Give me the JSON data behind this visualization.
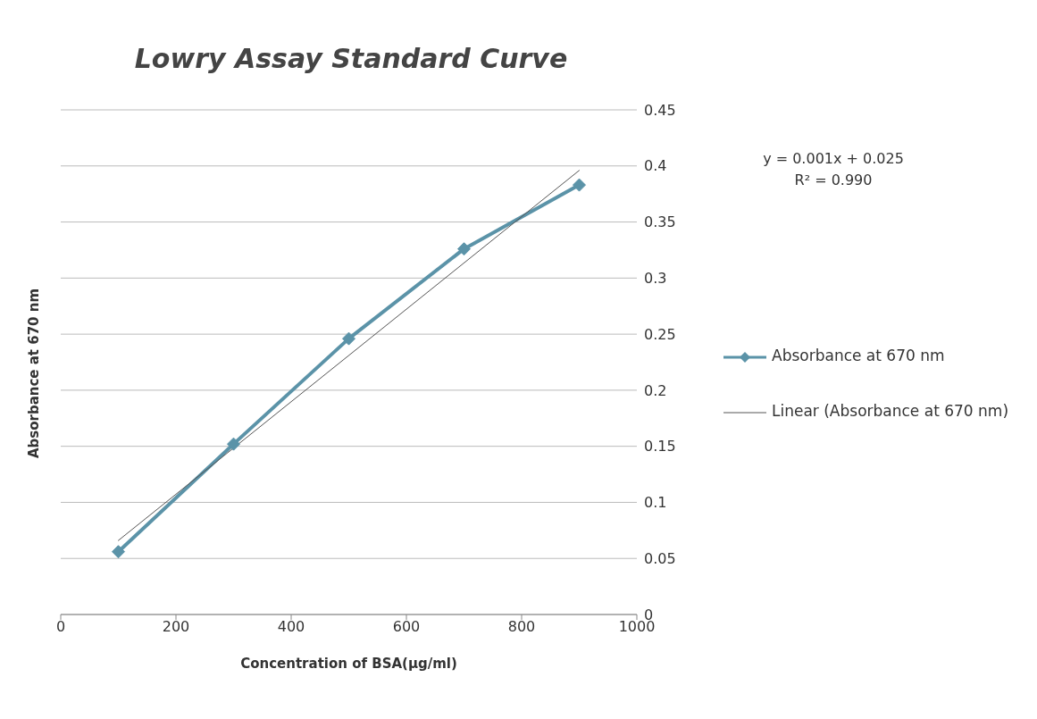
{
  "chart_data": {
    "type": "line",
    "title": "Lowry Assay Standard Curve",
    "xlabel": "Concentration  of BSA(µg/ml)",
    "ylabel": "Absorbance at 670 nm",
    "annotations": [
      "y = 0.001x + 0.025",
      "R² = 0.990"
    ],
    "x": [
      100,
      300,
      500,
      700,
      900
    ],
    "series": [
      {
        "name": "Absorbance at 670 nm",
        "color": "#5b93a8",
        "values": [
          0.056,
          0.152,
          0.246,
          0.326,
          0.383
        ],
        "marker": "diamond"
      },
      {
        "name": "Linear (Absorbance at 670 nm)",
        "color": "#555555",
        "type": "line",
        "x": [
          100,
          900
        ],
        "values": [
          0.066,
          0.396
        ],
        "marker": "none"
      }
    ],
    "xlim": [
      0,
      1000
    ],
    "xticks": [
      0,
      200,
      400,
      600,
      800,
      1000
    ],
    "ylim": [
      0,
      0.45
    ],
    "yticks": [
      0,
      0.05,
      0.1,
      0.15,
      0.2,
      0.25,
      0.3,
      0.35,
      0.4,
      0.45
    ],
    "grid": "y",
    "legend": "right",
    "line_style": "solid"
  }
}
